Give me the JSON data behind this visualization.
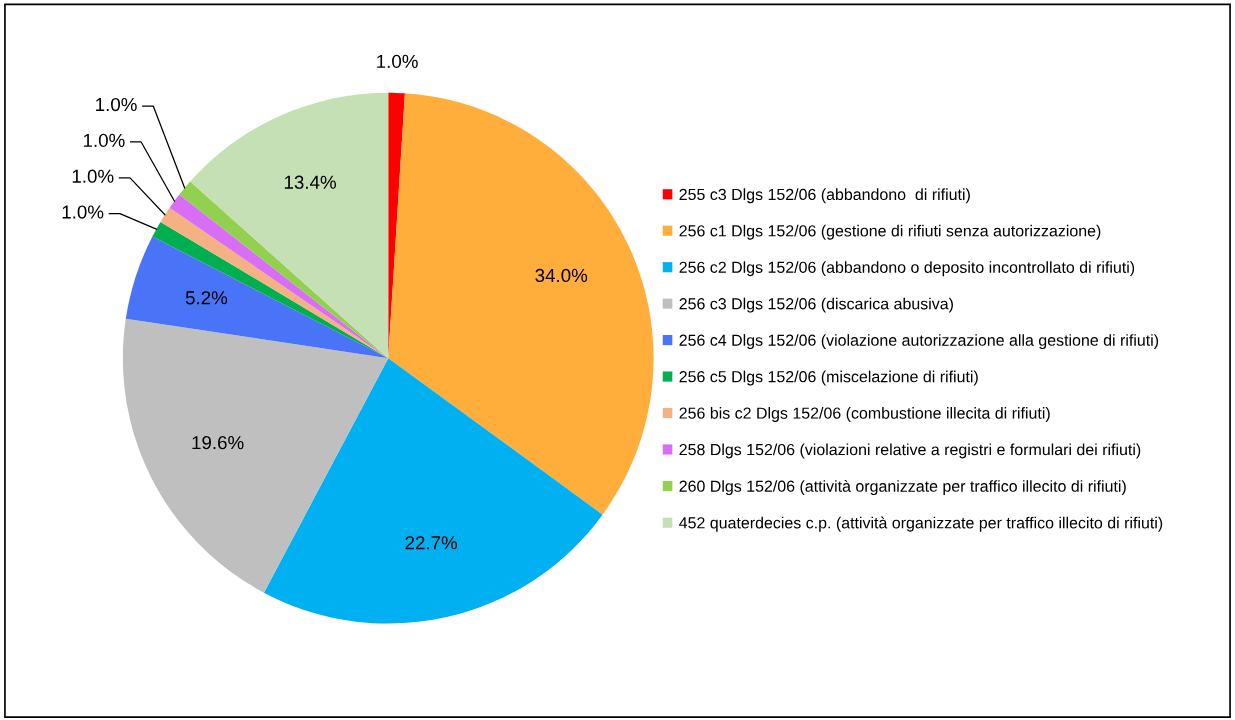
{
  "chart_data": {
    "type": "pie",
    "categories": [
      "255 c3 Dlgs 152/06 (abbandono  di rifiuti)",
      "256 c1 Dlgs 152/06 (gestione di rifiuti senza autorizzazione)",
      "256 c2 Dlgs 152/06 (abbandono o deposito incontrollato di rifiuti)",
      "256 c3 Dlgs 152/06 (discarica abusiva)",
      "256 c4 Dlgs 152/06 (violazione autorizzazione alla gestione di rifiuti)",
      "256 c5 Dlgs 152/06 (miscelazione di rifiuti)",
      "256 bis c2 Dlgs 152/06 (combustione illecita di rifiuti)",
      "258 Dlgs 152/06 (violazioni relative a registri e formulari dei rifiuti)",
      "260 Dlgs 152/06 (attività organizzate per traffico illecito di rifiuti)",
      "452 quaterdecies c.p. (attività organizzate per traffico illecito di rifiuti)"
    ],
    "values": [
      1.0,
      34.0,
      22.7,
      19.6,
      5.2,
      1.0,
      1.0,
      1.0,
      1.0,
      13.4
    ],
    "colors": [
      "#ff0000",
      "#ffad3b",
      "#00b0f0",
      "#bfbfbf",
      "#4a74f7",
      "#00b050",
      "#f4b183",
      "#d86ef5",
      "#92d050",
      "#c5e0b4"
    ],
    "value_labels": [
      "1.0%",
      "34.0%",
      "22.7%",
      "19.6%",
      "5.2%",
      "1.0%",
      "1.0%",
      "1.0%",
      "1.0%",
      "13.4%"
    ],
    "legend": "right"
  }
}
